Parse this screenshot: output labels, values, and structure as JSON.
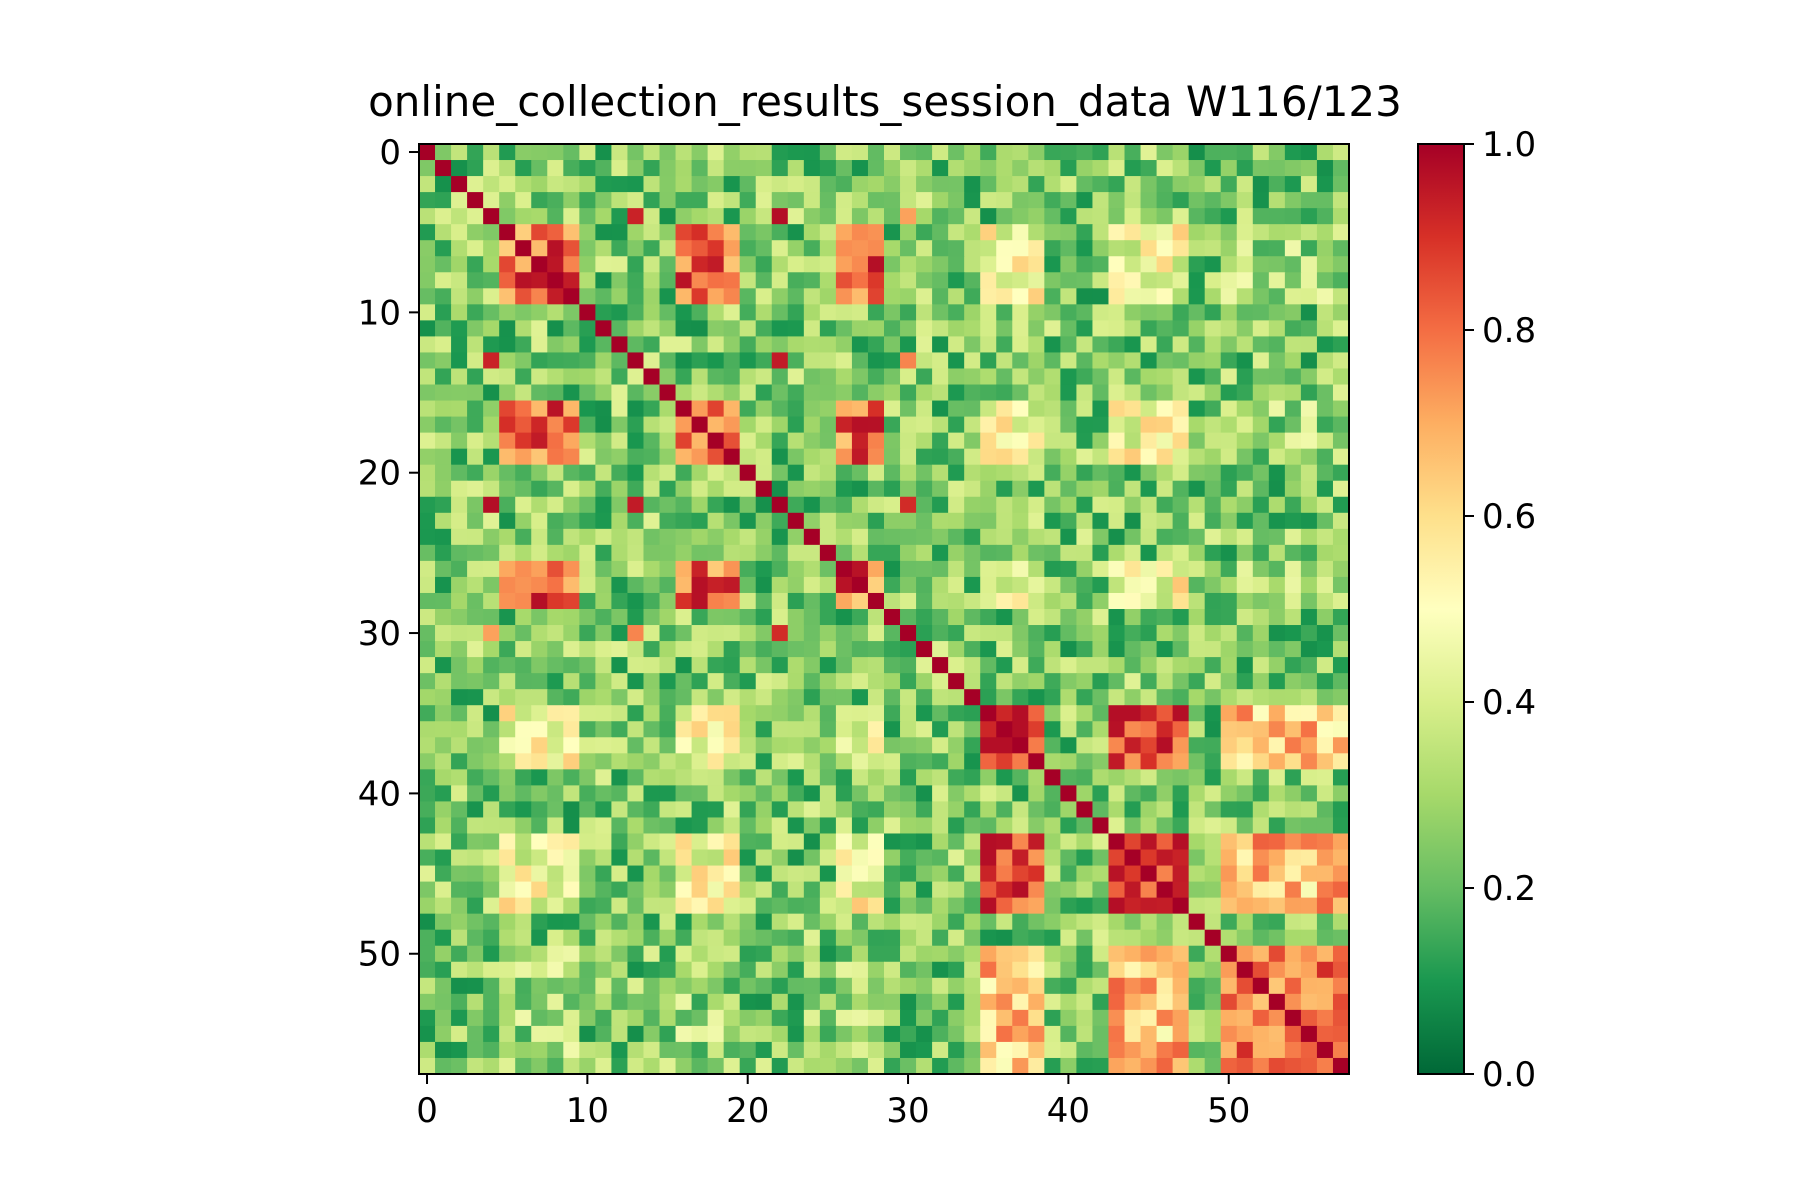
{
  "chart_data": {
    "type": "heatmap",
    "title": "online_collection_results_session_data W116/123",
    "xlabel": "",
    "ylabel": "",
    "rows": 58,
    "cols": 58,
    "x_ticks": [
      0,
      10,
      20,
      30,
      40,
      50
    ],
    "y_ticks": [
      0,
      10,
      20,
      30,
      40,
      50
    ],
    "colorbar": {
      "min": 0.0,
      "max": 1.0,
      "ticks": [
        "0.0",
        "0.2",
        "0.4",
        "0.6",
        "0.8",
        "1.0"
      ],
      "colormap": "RdYlGn_r",
      "colors": [
        "#006837",
        "#1a9850",
        "#66bd63",
        "#a6d96a",
        "#d9ef8b",
        "#ffffbf",
        "#fee08b",
        "#fdae61",
        "#f46d43",
        "#d73027",
        "#a50026"
      ]
    },
    "diagonal_value": 1.0,
    "block_groups": [
      {
        "indices": [
          5,
          6,
          7,
          8,
          9,
          16,
          17,
          18,
          19,
          26,
          27,
          28
        ],
        "level": 0.8
      },
      {
        "indices": [
          35,
          36,
          37,
          38,
          43,
          44,
          45,
          46,
          47
        ],
        "level": 0.88
      },
      {
        "indices": [
          50,
          51,
          52,
          53,
          54,
          55,
          56,
          57
        ],
        "level": 0.78
      },
      {
        "indices": [
          4,
          13,
          22,
          30
        ],
        "level": 0.85
      }
    ],
    "inter_group_levels": [
      {
        "groups": [
          0,
          1
        ],
        "level": 0.48
      },
      {
        "groups": [
          1,
          2
        ],
        "level": 0.65
      },
      {
        "groups": [
          0,
          2
        ],
        "level": 0.3
      }
    ],
    "background_level": 0.25
  }
}
